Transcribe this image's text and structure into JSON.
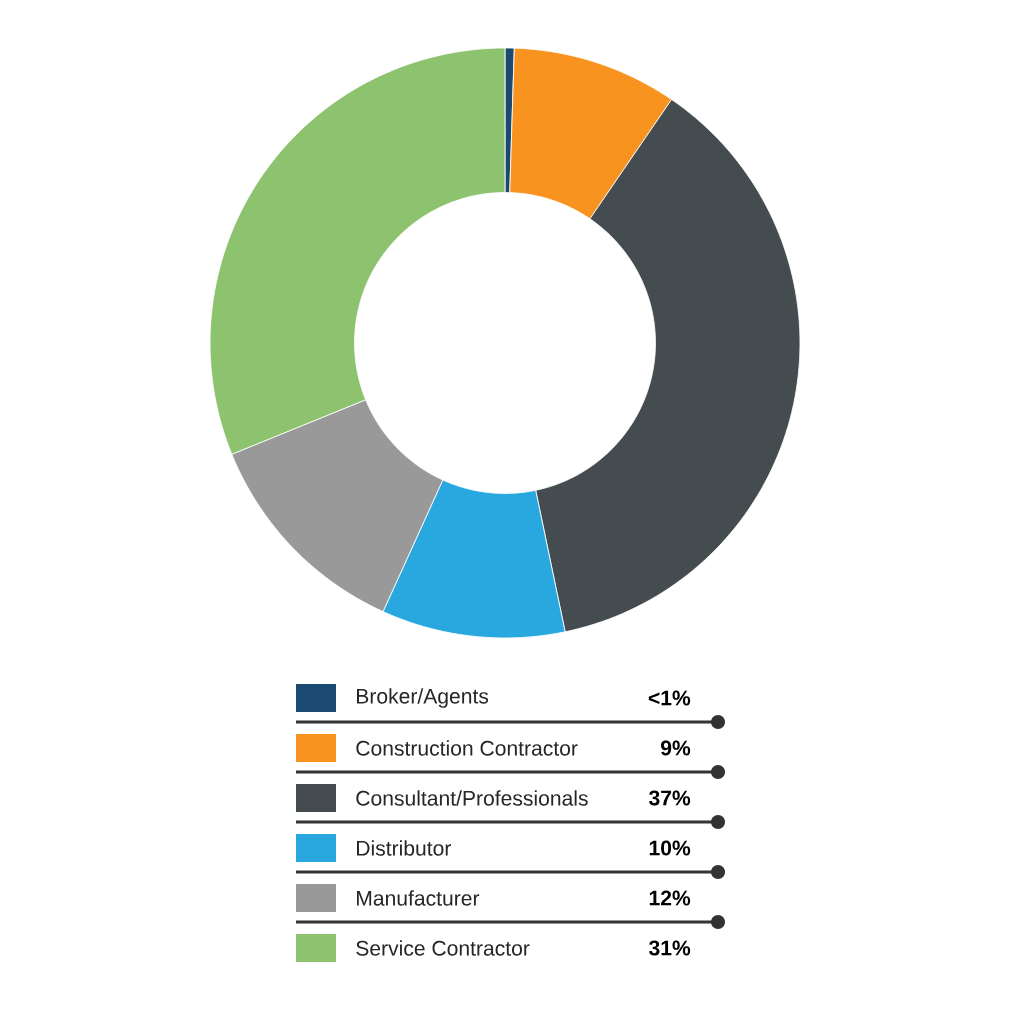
{
  "chart_data": {
    "type": "donut",
    "categories": [
      "Broker/Agents",
      "Construction Contractor",
      "Consultant/Professionals",
      "Distributor",
      "Manufacturer",
      "Service Contractor"
    ],
    "values": [
      0.5,
      9,
      37,
      10,
      12,
      31
    ],
    "value_labels": [
      "<1%",
      "9%",
      "37%",
      "10%",
      "12%",
      "31%"
    ],
    "colors": [
      "#1a4a72",
      "#f7931e",
      "#454c4f",
      "#29a8e0",
      "#999999",
      "#8dc36f"
    ],
    "legend": "bottom"
  }
}
